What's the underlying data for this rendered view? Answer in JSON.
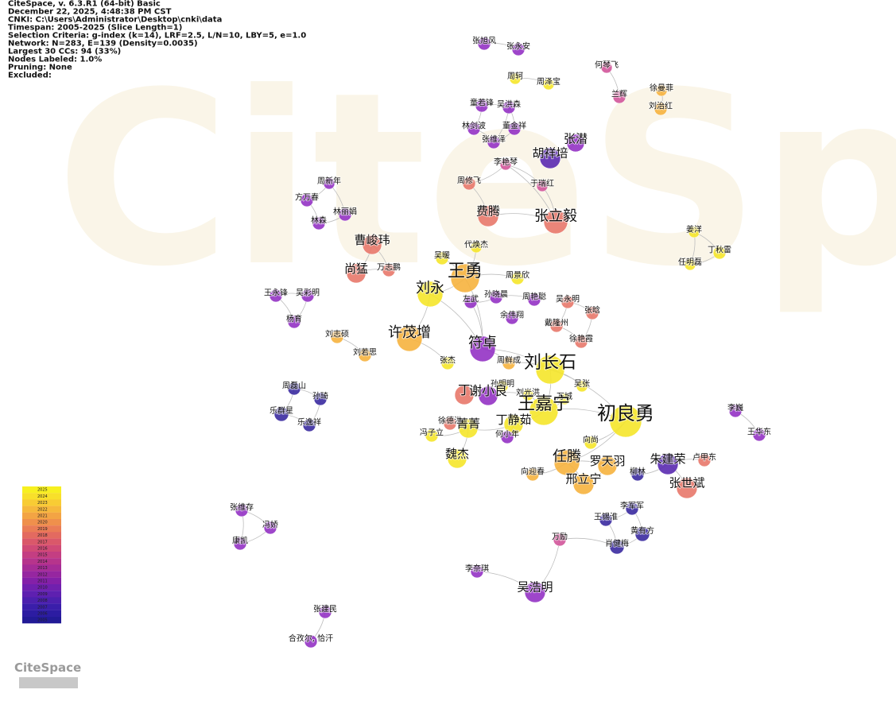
{
  "header": {
    "lines": [
      "CiteSpace, v. 6.3.R1 (64-bit) Basic",
      "December 22, 2025, 4:48:38 PM CST",
      "CNKI: C:\\Users\\Administrator\\Desktop\\cnki\\data",
      "Timespan: 2005-2025 (Slice Length=1)",
      "Selection Criteria: g-index (k=14), LRF=2.5, L/N=10, LBY=5, e=1.0",
      "Network: N=283, E=139 (Density=0.0035)",
      "Largest 30 CCs: 94 (33%)",
      "Nodes Labeled: 1.0%",
      "Pruning: None",
      "Excluded:"
    ]
  },
  "watermark": "CiteSpace",
  "logo": "CiteSpace",
  "legend": {
    "years": [
      2025,
      2024,
      2023,
      2022,
      2021,
      2020,
      2019,
      2018,
      2017,
      2016,
      2015,
      2014,
      2013,
      2012,
      2011,
      2010,
      2009,
      2008,
      2007,
      2006,
      2005
    ]
  },
  "nodes": [
    {
      "label": "张旭风"
    },
    {
      "label": "张永安"
    },
    {
      "label": "何琴飞"
    },
    {
      "label": "周轲"
    },
    {
      "label": "周泽宝"
    },
    {
      "label": "兰辉"
    },
    {
      "label": "徐曼菲"
    },
    {
      "label": "刘治红"
    },
    {
      "label": "童若锋"
    },
    {
      "label": "吴洪森"
    },
    {
      "label": "林剑波"
    },
    {
      "label": "董金祥"
    },
    {
      "label": "张维泽"
    },
    {
      "label": "张潜"
    },
    {
      "label": "胡祥培"
    },
    {
      "label": "李艳琴"
    },
    {
      "label": "周修飞"
    },
    {
      "label": "于瑞红"
    },
    {
      "label": "周新年"
    },
    {
      "label": "方万春"
    },
    {
      "label": "林丽娟"
    },
    {
      "label": "林森"
    },
    {
      "label": "费腾"
    },
    {
      "label": "张立毅"
    },
    {
      "label": "姜洋"
    },
    {
      "label": "丁秋雷"
    },
    {
      "label": "任明磊"
    },
    {
      "label": "曹峻玮"
    },
    {
      "label": "代焕杰"
    },
    {
      "label": "尚猛"
    },
    {
      "label": "万志鹏"
    },
    {
      "label": "吴暖"
    },
    {
      "label": "王勇"
    },
    {
      "label": "刘永"
    },
    {
      "label": "周景欣"
    },
    {
      "label": "王永锋"
    },
    {
      "label": "吴彩明"
    },
    {
      "label": "杨育"
    },
    {
      "label": "孙晓晨"
    },
    {
      "label": "周艳聪"
    },
    {
      "label": "吴永明"
    },
    {
      "label": "左武"
    },
    {
      "label": "张晗"
    },
    {
      "label": "余伟翔"
    },
    {
      "label": "戴隆州"
    },
    {
      "label": "徐艳霞"
    },
    {
      "label": "刘志硕"
    },
    {
      "label": "许茂增"
    },
    {
      "label": "符卓"
    },
    {
      "label": "刘若思"
    },
    {
      "label": "张杰"
    },
    {
      "label": "周鲜成"
    },
    {
      "label": "刘长石"
    },
    {
      "label": "吴张"
    },
    {
      "label": "孙明明"
    },
    {
      "label": "丁"
    },
    {
      "label": "谢小良"
    },
    {
      "label": "刘光洪"
    },
    {
      "label": "万城"
    },
    {
      "label": "王嘉宁"
    },
    {
      "label": "初良勇"
    },
    {
      "label": "李巍"
    },
    {
      "label": "王华东"
    },
    {
      "label": "丁静茹"
    },
    {
      "label": "徐德洪"
    },
    {
      "label": "菁菁"
    },
    {
      "label": "冯子立"
    },
    {
      "label": "何小年"
    },
    {
      "label": "向尚"
    },
    {
      "label": "魏杰"
    },
    {
      "label": "朱建荣"
    },
    {
      "label": "卢甲东"
    },
    {
      "label": "任腾"
    },
    {
      "label": "罗天羽"
    },
    {
      "label": "向迎春"
    },
    {
      "label": "柳林"
    },
    {
      "label": "邢立宁"
    },
    {
      "label": "张世斌"
    },
    {
      "label": "周磊山"
    },
    {
      "label": "孙琦"
    },
    {
      "label": "乐群星"
    },
    {
      "label": "乐逸祥"
    },
    {
      "label": "李军军"
    },
    {
      "label": "王锡淮"
    },
    {
      "label": "黄有方"
    },
    {
      "label": "肖健梅"
    },
    {
      "label": "张维存"
    },
    {
      "label": "冯娇"
    },
    {
      "label": "康凯"
    },
    {
      "label": "万励"
    },
    {
      "label": "李奈琪"
    },
    {
      "label": "吴浩明"
    },
    {
      "label": "张建民"
    },
    {
      "label": "合孜尔, 恰汗"
    }
  ]
}
